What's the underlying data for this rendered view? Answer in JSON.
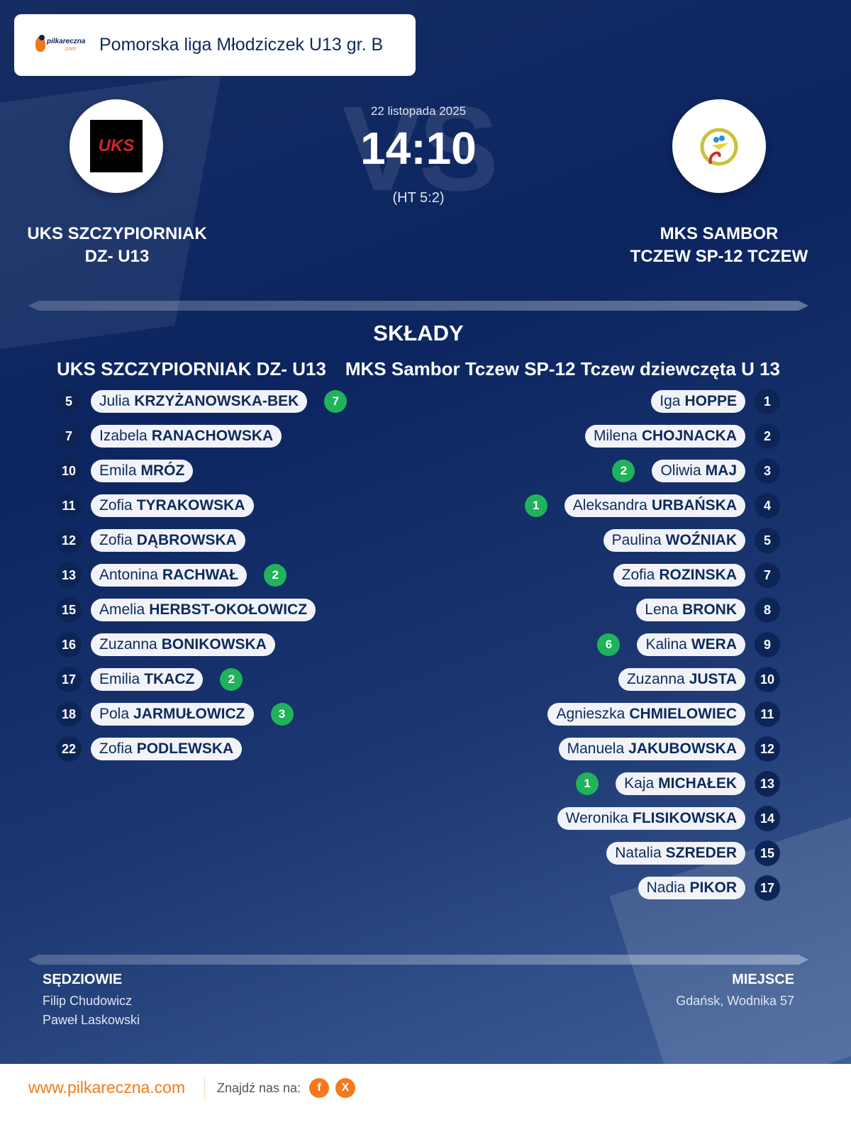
{
  "header": {
    "league": "Pomorska liga Młodziczek U13 gr. B",
    "logo_text": "pilkareczna",
    "logo_sub": ".com"
  },
  "match": {
    "date": "22 listopada 2025",
    "score": "14:10",
    "halftime": "(HT 5:2)",
    "vs": "VS",
    "home": {
      "name_line1": "UKS SZCZYPIORNIAK",
      "name_line2": "DZ- U13",
      "logo_text": "UKS"
    },
    "away": {
      "name_line1": "MKS SAMBOR",
      "name_line2": "TCZEW SP-12 TCZEW"
    }
  },
  "lineups": {
    "title": "SKŁADY",
    "home_team": "UKS SZCZYPIORNIAK DZ- U13",
    "away_team": "MKS Sambor Tczew SP-12 Tczew dziewczęta  U 13",
    "home": [
      {
        "number": "5",
        "first": "Julia",
        "last": "KRZYŻANOWSKA-BEK",
        "goals": "7"
      },
      {
        "number": "7",
        "first": "Izabela",
        "last": "RANACHOWSKA",
        "goals": null
      },
      {
        "number": "10",
        "first": "Emila",
        "last": "MRÓZ",
        "goals": null
      },
      {
        "number": "11",
        "first": "Zofia",
        "last": "TYRAKOWSKA",
        "goals": null
      },
      {
        "number": "12",
        "first": "Zofia",
        "last": "DĄBROWSKA",
        "goals": null
      },
      {
        "number": "13",
        "first": "Antonina",
        "last": "RACHWAŁ",
        "goals": "2"
      },
      {
        "number": "15",
        "first": "Amelia",
        "last": "HERBST-OKOŁOWICZ",
        "goals": null
      },
      {
        "number": "16",
        "first": "Zuzanna",
        "last": "BONIKOWSKA",
        "goals": null
      },
      {
        "number": "17",
        "first": "Emilia",
        "last": "TKACZ",
        "goals": "2"
      },
      {
        "number": "18",
        "first": "Pola",
        "last": "JARMUŁOWICZ",
        "goals": "3"
      },
      {
        "number": "22",
        "first": "Zofia",
        "last": "PODLEWSKA",
        "goals": null
      }
    ],
    "away": [
      {
        "number": "1",
        "first": "Iga",
        "last": "HOPPE",
        "goals": null
      },
      {
        "number": "2",
        "first": "Milena",
        "last": "CHOJNACKA",
        "goals": null
      },
      {
        "number": "3",
        "first": "Oliwia",
        "last": "MAJ",
        "goals": "2"
      },
      {
        "number": "4",
        "first": "Aleksandra",
        "last": "URBAŃSKA",
        "goals": "1"
      },
      {
        "number": "5",
        "first": "Paulina",
        "last": "WOŹNIAK",
        "goals": null
      },
      {
        "number": "7",
        "first": "Zofia",
        "last": "ROZINSKA",
        "goals": null
      },
      {
        "number": "8",
        "first": "Lena",
        "last": "BRONK",
        "goals": null
      },
      {
        "number": "9",
        "first": "Kalina",
        "last": "WERA",
        "goals": "6"
      },
      {
        "number": "10",
        "first": "Zuzanna",
        "last": "JUSTA",
        "goals": null
      },
      {
        "number": "11",
        "first": "Agnieszka",
        "last": "CHMIELOWIEC",
        "goals": null
      },
      {
        "number": "12",
        "first": "Manuela",
        "last": "JAKUBOWSKA",
        "goals": null
      },
      {
        "number": "13",
        "first": "Kaja",
        "last": "MICHAŁEK",
        "goals": "1"
      },
      {
        "number": "14",
        "first": "Weronika",
        "last": "FLISIKOWSKA",
        "goals": null
      },
      {
        "number": "15",
        "first": "Natalia",
        "last": "SZREDER",
        "goals": null
      },
      {
        "number": "17",
        "first": "Nadia",
        "last": "PIKOR",
        "goals": null
      }
    ]
  },
  "officials": {
    "label": "SĘDZIOWIE",
    "names": [
      "Filip Chudowicz",
      "Paweł Laskowski"
    ]
  },
  "venue": {
    "label": "MIEJSCE",
    "value": "Gdańsk, Wodnika 57"
  },
  "footer": {
    "site": "www.pilkareczna.com",
    "find_us": "Znajdź nas na:",
    "social": [
      {
        "icon": "facebook-icon",
        "glyph": "f"
      },
      {
        "icon": "x-icon",
        "glyph": "X"
      }
    ]
  },
  "colors": {
    "background": "#0c2560",
    "accent": "#f07a1a",
    "goal_badge": "#20b35a",
    "pill": "#f1f3f8",
    "text_dark": "#0e2a5c"
  }
}
